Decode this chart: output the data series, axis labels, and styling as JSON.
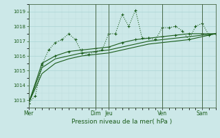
{
  "xlabel": "Pression niveau de la mer( hPa )",
  "background_color": "#cce8e8",
  "grid_major_color": "#aad4d4",
  "grid_minor_color": "#bbdddd",
  "line_color": "#1a5c1a",
  "vline_color": "#446644",
  "ylim": [
    1012.5,
    1019.5
  ],
  "xlim": [
    0,
    28
  ],
  "yticks": [
    1013,
    1014,
    1015,
    1016,
    1017,
    1018,
    1019
  ],
  "day_tick_positions": [
    0,
    10,
    12,
    20,
    26
  ],
  "day_labels": [
    "Mer",
    "Dim",
    "Jeu",
    "Ven",
    "Sam"
  ],
  "series": [
    {
      "x": [
        0,
        1,
        2,
        3,
        4,
        5,
        6,
        7,
        8,
        9,
        10,
        11,
        12,
        13,
        14,
        15,
        16,
        17,
        18,
        19,
        20,
        21,
        22,
        23,
        24,
        25,
        26,
        27,
        28
      ],
      "y": [
        1012.8,
        1013.3,
        1015.4,
        1016.4,
        1016.9,
        1017.1,
        1017.5,
        1017.1,
        1016.2,
        1016.1,
        1016.3,
        1016.4,
        1017.5,
        1017.5,
        1018.8,
        1018.0,
        1019.1,
        1017.2,
        1017.2,
        1017.1,
        1017.9,
        1017.9,
        1018.0,
        1017.7,
        1017.1,
        1018.0,
        1018.2,
        1017.4,
        1017.5
      ],
      "marker": "+",
      "linestyle": ":",
      "linewidth": 0.8
    },
    {
      "x": [
        0,
        2,
        4,
        6,
        8,
        10,
        12,
        14,
        16,
        18,
        20,
        22,
        24,
        26,
        28
      ],
      "y": [
        1012.8,
        1015.5,
        1016.0,
        1016.3,
        1016.4,
        1016.5,
        1016.6,
        1016.9,
        1017.1,
        1017.2,
        1017.3,
        1017.4,
        1017.5,
        1017.5,
        1017.5
      ],
      "marker": "+",
      "linestyle": "-",
      "linewidth": 0.8
    },
    {
      "x": [
        0,
        2,
        4,
        6,
        8,
        10,
        12,
        14,
        16,
        18,
        20,
        22,
        24,
        26,
        28
      ],
      "y": [
        1012.8,
        1015.2,
        1015.8,
        1016.0,
        1016.2,
        1016.3,
        1016.4,
        1016.6,
        1016.8,
        1017.0,
        1017.1,
        1017.2,
        1017.3,
        1017.4,
        1017.5
      ],
      "marker": null,
      "linestyle": "-",
      "linewidth": 0.8
    },
    {
      "x": [
        0,
        2,
        4,
        6,
        8,
        10,
        12,
        14,
        16,
        18,
        20,
        22,
        24,
        26,
        28
      ],
      "y": [
        1012.8,
        1014.8,
        1015.5,
        1015.8,
        1016.0,
        1016.1,
        1016.2,
        1016.4,
        1016.6,
        1016.8,
        1016.9,
        1017.0,
        1017.1,
        1017.3,
        1017.5
      ],
      "marker": null,
      "linestyle": "-",
      "linewidth": 0.8
    }
  ]
}
